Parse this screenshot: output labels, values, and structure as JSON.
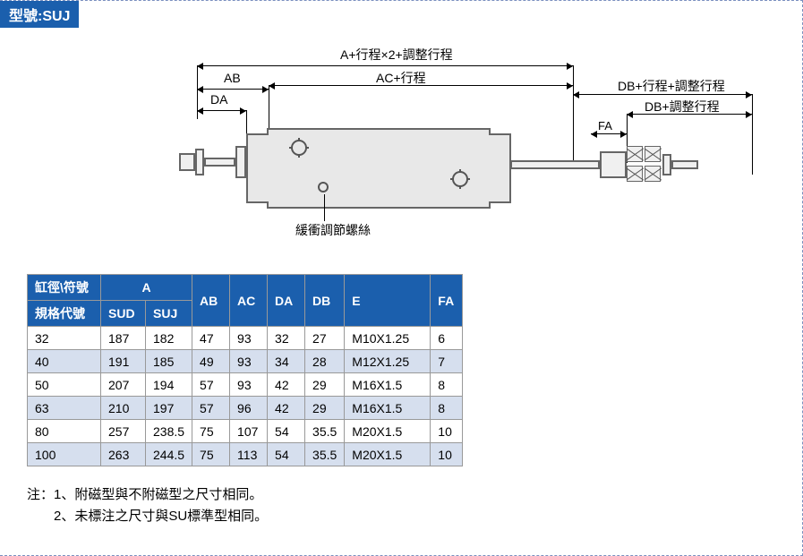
{
  "model_badge": "型號:SUJ",
  "diagram": {
    "labels": {
      "top_overall": "A+行程×2+調整行程",
      "ac_stroke": "AC+行程",
      "ab": "AB",
      "da": "DA",
      "db_stroke_adj": "DB+行程+調整行程",
      "db_adj": "DB+調整行程",
      "fa": "FA",
      "adj_screw": "緩衝調節螺絲"
    },
    "colors": {
      "body_fill": "#e8e8e8",
      "body_stroke": "#666666",
      "badge_bg": "#1b5fad",
      "table_header_bg": "#1b5fad",
      "table_stripe": "#d6dfee"
    }
  },
  "table": {
    "headers": {
      "size_spec": "缸徑\\符號",
      "spec_code": "規格代號",
      "A": "A",
      "SUD": "SUD",
      "SUJ": "SUJ",
      "AB": "AB",
      "AC": "AC",
      "DA": "DA",
      "DB": "DB",
      "E": "E",
      "FA": "FA"
    },
    "rows": [
      {
        "size": "32",
        "SUD": "187",
        "SUJ": "182",
        "AB": "47",
        "AC": "93",
        "DA": "32",
        "DB": "27",
        "E": "M10X1.25",
        "FA": "6"
      },
      {
        "size": "40",
        "SUD": "191",
        "SUJ": "185",
        "AB": "49",
        "AC": "93",
        "DA": "34",
        "DB": "28",
        "E": "M12X1.25",
        "FA": "7"
      },
      {
        "size": "50",
        "SUD": "207",
        "SUJ": "194",
        "AB": "57",
        "AC": "93",
        "DA": "42",
        "DB": "29",
        "E": "M16X1.5",
        "FA": "8"
      },
      {
        "size": "63",
        "SUD": "210",
        "SUJ": "197",
        "AB": "57",
        "AC": "96",
        "DA": "42",
        "DB": "29",
        "E": "M16X1.5",
        "FA": "8"
      },
      {
        "size": "80",
        "SUD": "257",
        "SUJ": "238.5",
        "AB": "75",
        "AC": "107",
        "DA": "54",
        "DB": "35.5",
        "E": "M20X1.5",
        "FA": "10"
      },
      {
        "size": "100",
        "SUD": "263",
        "SUJ": "244.5",
        "AB": "75",
        "AC": "113",
        "DA": "54",
        "DB": "35.5",
        "E": "M20X1.5",
        "FA": "10"
      }
    ]
  },
  "notes": {
    "n1": "注：1、附磁型與不附磁型之尺寸相同。",
    "n2": "　　2、未標注之尺寸與SU標準型相同。"
  }
}
